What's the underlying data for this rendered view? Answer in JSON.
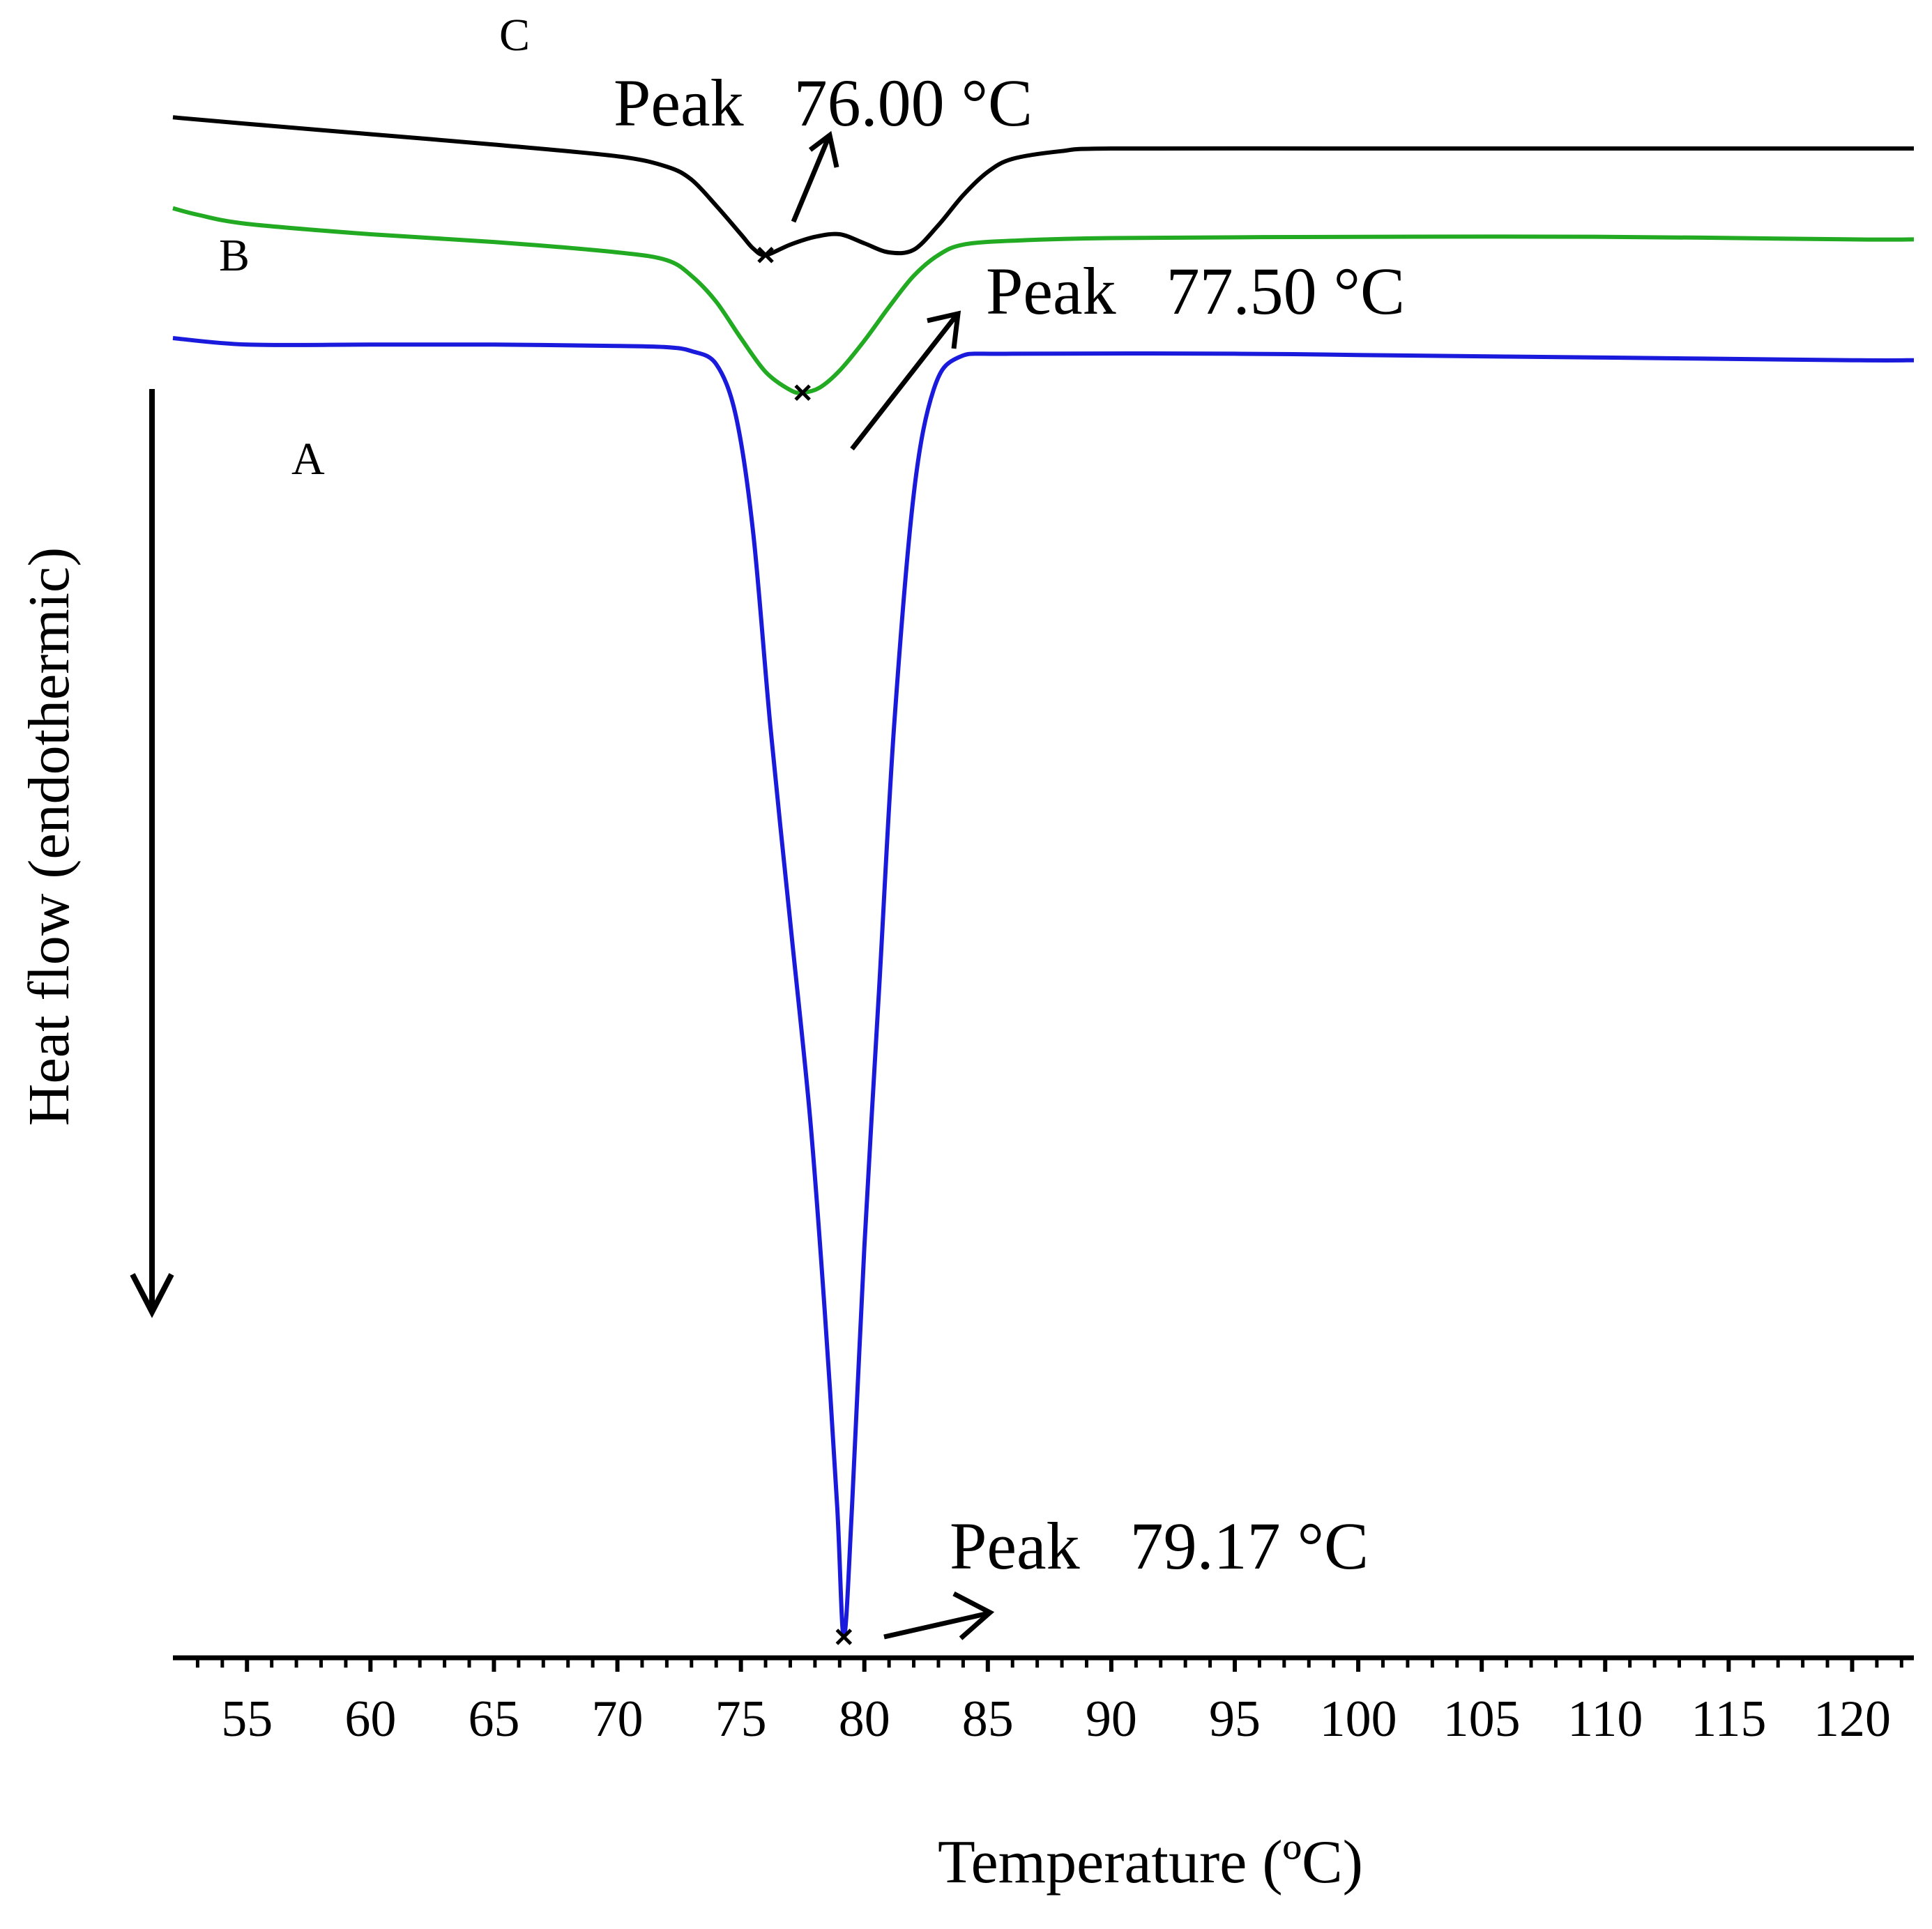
{
  "chart_data": {
    "type": "line",
    "title": "",
    "xlabel": "Temperature (ºC)",
    "ylabel": "Heat flow (endothermic)",
    "xlim": [
      52,
      122.5
    ],
    "ylim": [
      -1.0,
      0.2
    ],
    "grid": false,
    "legend": "none",
    "x_ticks": [
      55,
      60,
      65,
      70,
      75,
      80,
      85,
      90,
      95,
      100,
      105,
      110,
      115,
      120
    ],
    "series": [
      {
        "name": "A",
        "color": "#1a1adc",
        "points": [
          [
            52,
            0.0
          ],
          [
            55,
            -0.005
          ],
          [
            60,
            -0.005
          ],
          [
            65,
            -0.005
          ],
          [
            70,
            -0.006
          ],
          [
            72,
            -0.007
          ],
          [
            73,
            -0.01
          ],
          [
            74,
            -0.02
          ],
          [
            74.8,
            -0.06
          ],
          [
            75.5,
            -0.15
          ],
          [
            76.2,
            -0.3
          ],
          [
            77,
            -0.45
          ],
          [
            77.8,
            -0.6
          ],
          [
            78.4,
            -0.75
          ],
          [
            78.9,
            -0.9
          ],
          [
            79.17,
            -1.0
          ],
          [
            79.5,
            -0.9
          ],
          [
            80,
            -0.7
          ],
          [
            80.6,
            -0.5
          ],
          [
            81.2,
            -0.3
          ],
          [
            82,
            -0.12
          ],
          [
            82.8,
            -0.04
          ],
          [
            83.8,
            -0.015
          ],
          [
            86,
            -0.012
          ],
          [
            95,
            -0.012
          ],
          [
            100,
            -0.013
          ],
          [
            110,
            -0.015
          ],
          [
            120,
            -0.017
          ],
          [
            122.5,
            -0.017
          ]
        ]
      },
      {
        "name": "B",
        "color": "#22aa22",
        "points": [
          [
            52,
            0.1
          ],
          [
            53,
            0.095
          ],
          [
            55,
            0.088
          ],
          [
            60,
            0.08
          ],
          [
            65,
            0.074
          ],
          [
            70,
            0.066
          ],
          [
            72,
            0.06
          ],
          [
            73,
            0.048
          ],
          [
            74,
            0.028
          ],
          [
            75,
            0.0
          ],
          [
            76,
            -0.026
          ],
          [
            77,
            -0.04
          ],
          [
            77.5,
            -0.042
          ],
          [
            78.2,
            -0.038
          ],
          [
            79,
            -0.025
          ],
          [
            80,
            -0.002
          ],
          [
            81,
            0.024
          ],
          [
            82,
            0.048
          ],
          [
            83,
            0.064
          ],
          [
            84,
            0.072
          ],
          [
            86,
            0.075
          ],
          [
            90,
            0.077
          ],
          [
            100,
            0.078
          ],
          [
            110,
            0.078
          ],
          [
            120,
            0.076
          ],
          [
            122.5,
            0.076
          ]
        ]
      },
      {
        "name": "C",
        "color": "#000000",
        "points": [
          [
            52,
            0.17
          ],
          [
            55,
            0.165
          ],
          [
            60,
            0.157
          ],
          [
            65,
            0.149
          ],
          [
            70,
            0.14
          ],
          [
            72,
            0.132
          ],
          [
            73,
            0.122
          ],
          [
            74,
            0.102
          ],
          [
            75,
            0.08
          ],
          [
            75.5,
            0.069
          ],
          [
            76,
            0.064
          ],
          [
            77,
            0.072
          ],
          [
            78,
            0.078
          ],
          [
            79,
            0.08
          ],
          [
            80,
            0.073
          ],
          [
            81,
            0.066
          ],
          [
            82,
            0.068
          ],
          [
            83,
            0.087
          ],
          [
            84,
            0.11
          ],
          [
            85,
            0.128
          ],
          [
            86,
            0.138
          ],
          [
            88,
            0.144
          ],
          [
            90,
            0.146
          ],
          [
            100,
            0.146
          ],
          [
            110,
            0.146
          ],
          [
            122.5,
            0.146
          ]
        ]
      }
    ],
    "annotations": [
      {
        "series": "A",
        "text": "Peak   79.17 °C",
        "x": 79.17
      },
      {
        "series": "B",
        "text": "Peak   77.50 °C",
        "x": 77.5
      },
      {
        "series": "C",
        "text": "Peak   76.00 °C",
        "x": 76.0
      }
    ]
  }
}
